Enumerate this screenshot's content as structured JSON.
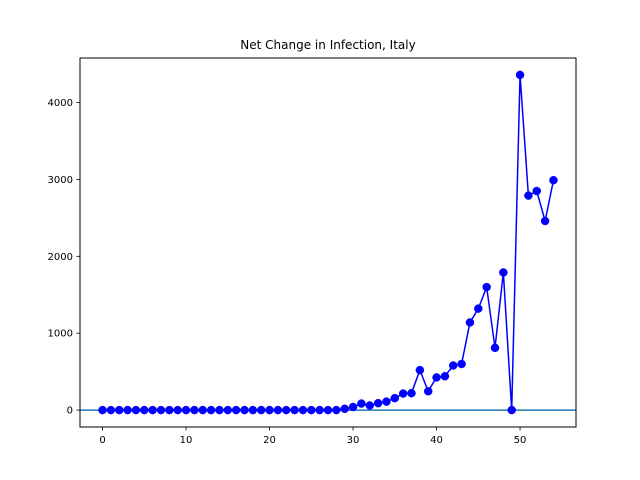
{
  "chart_data": {
    "type": "line",
    "title": "Net Change in Infection, Italy",
    "xlabel": "",
    "ylabel": "",
    "xlim": [
      -2.7,
      56.7
    ],
    "ylim": [
      -220,
      4580
    ],
    "xticks": [
      0,
      10,
      20,
      30,
      40,
      50
    ],
    "yticks": [
      0,
      1000,
      2000,
      3000,
      4000
    ],
    "grid": false,
    "legend": "none",
    "series": [
      {
        "color": "#0000ff",
        "marker": "circle",
        "x": [
          0,
          1,
          2,
          3,
          4,
          5,
          6,
          7,
          8,
          9,
          10,
          11,
          12,
          13,
          14,
          15,
          16,
          17,
          18,
          19,
          20,
          21,
          22,
          23,
          24,
          25,
          26,
          27,
          28,
          29,
          30,
          31,
          32,
          33,
          34,
          35,
          36,
          37,
          38,
          39,
          40,
          41,
          42,
          43,
          44,
          45,
          46,
          47,
          48,
          49,
          50,
          51,
          52,
          53,
          54
        ],
        "values": [
          0,
          0,
          0,
          0,
          0,
          0,
          0,
          0,
          0,
          0,
          0,
          0,
          0,
          0,
          0,
          0,
          0,
          0,
          0,
          0,
          0,
          0,
          0,
          0,
          0,
          0,
          0,
          0,
          0,
          17,
          40,
          85,
          60,
          90,
          110,
          155,
          215,
          220,
          520,
          245,
          425,
          440,
          580,
          600,
          1140,
          1320,
          1600,
          810,
          1790,
          0,
          4360,
          2790,
          2850,
          2460,
          2990
        ]
      }
    ],
    "reference_line": {
      "y": 0,
      "color": "#1f77b4"
    }
  }
}
